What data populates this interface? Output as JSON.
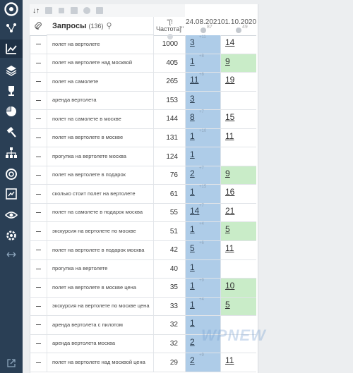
{
  "sidebar": {
    "icons": [
      "logo-icon",
      "share-icon",
      "chart-icon",
      "layers-icon",
      "trophy-icon",
      "pie-icon",
      "hammer-icon",
      "sitemap-icon",
      "lifebuoy-icon",
      "report-icon",
      "eye-icon",
      "settings-icon",
      "arrows-icon"
    ],
    "active": "chart-icon"
  },
  "table": {
    "header": {
      "queries_title": "Запросы",
      "queries_count": "(136)",
      "frequency": "\"[!Частота]\"",
      "date1": "24.08.2021",
      "date1_sup": "87",
      "date2": "01.10.2020",
      "date2_sup": "49"
    },
    "rows": [
      {
        "query": "полет на вертолете",
        "freq": "1000",
        "p1": "3",
        "c1": "+11",
        "p2": "14",
        "p2_green": false
      },
      {
        "query": "полет на вертолете над москвой",
        "freq": "405",
        "p1": "1",
        "c1": "+8",
        "p2": "9",
        "p2_green": true
      },
      {
        "query": "полет на самолете",
        "freq": "265",
        "p1": "11",
        "c1": "+8",
        "p2": "19",
        "p2_green": false
      },
      {
        "query": "аренда вертолета",
        "freq": "153",
        "p1": "3",
        "c1": "",
        "p2": "",
        "p2_green": false
      },
      {
        "query": "полет на самолете в москве",
        "freq": "144",
        "p1": "8",
        "c1": "+7",
        "p2": "15",
        "p2_green": false
      },
      {
        "query": "полет на вертолете в москве",
        "freq": "131",
        "p1": "1",
        "c1": "+10",
        "p2": "11",
        "p2_green": false
      },
      {
        "query": "прогулка на вертолете москва",
        "freq": "124",
        "p1": "1",
        "c1": "",
        "p2": "",
        "p2_green": false
      },
      {
        "query": "полет на вертолете в подарок",
        "freq": "76",
        "p1": "2",
        "c1": "+7",
        "p2": "9",
        "p2_green": true
      },
      {
        "query": "сколько стоит полет на вертолете",
        "freq": "61",
        "p1": "1",
        "c1": "+15",
        "p2": "16",
        "p2_green": false
      },
      {
        "query": "полет на самолете в подарок москва",
        "freq": "55",
        "p1": "14",
        "c1": "+7",
        "p2": "21",
        "p2_green": false
      },
      {
        "query": "экскурсия на вертолете по москве",
        "freq": "51",
        "p1": "1",
        "c1": "+4",
        "p2": "5",
        "p2_green": true
      },
      {
        "query": "полет на вертолете в подарок москва",
        "freq": "42",
        "p1": "5",
        "c1": "+6",
        "p2": "11",
        "p2_green": false
      },
      {
        "query": "прогулка на вертолете",
        "freq": "40",
        "p1": "1",
        "c1": "",
        "p2": "",
        "p2_green": false
      },
      {
        "query": "полет на вертолете в москве цена",
        "freq": "35",
        "p1": "1",
        "c1": "+9",
        "p2": "10",
        "p2_green": true
      },
      {
        "query": "экскурсия на вертолете по москве цена",
        "freq": "33",
        "p1": "1",
        "c1": "+4",
        "p2": "5",
        "p2_green": true
      },
      {
        "query": "аренда вертолета с пилотом",
        "freq": "32",
        "p1": "1",
        "c1": "",
        "p2": "",
        "p2_green": false
      },
      {
        "query": "аренда вертолета москва",
        "freq": "32",
        "p1": "2",
        "c1": "",
        "p2": "",
        "p2_green": false
      },
      {
        "query": "полет на вертолете над москвой цена",
        "freq": "29",
        "p1": "2",
        "c1": "+9",
        "p2": "11",
        "p2_green": false
      }
    ]
  },
  "watermark": "WPNEW",
  "colors": {
    "sidebar": "#2a3f55",
    "pos_blue": "#aecce8",
    "pos_green": "#c9ecc8"
  }
}
